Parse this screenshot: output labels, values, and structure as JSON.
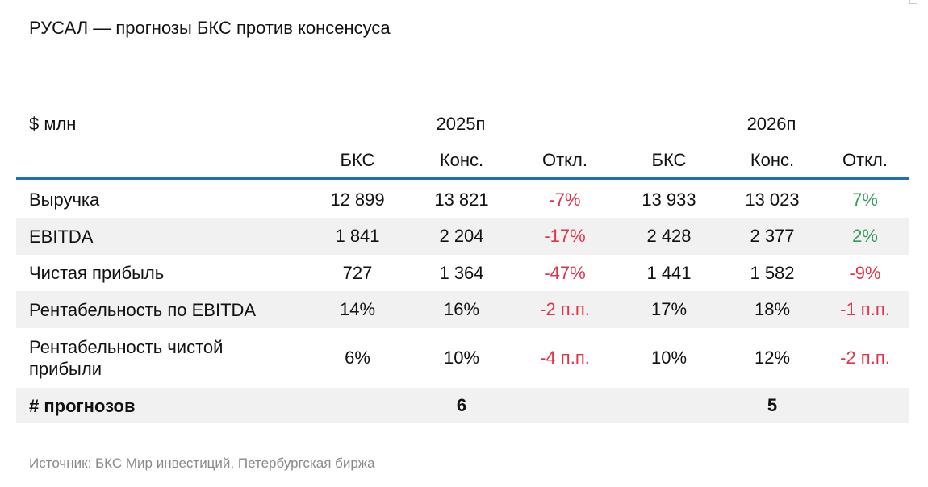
{
  "title": "РУСАЛ — прогнозы БКС против консенсуса",
  "unit_label": "$ млн",
  "years": [
    "2025п",
    "2026п"
  ],
  "subheaders": [
    "БКС",
    "Конс.",
    "Откл.",
    "БКС",
    "Конс.",
    "Откл."
  ],
  "rows": [
    {
      "label": "Выручка",
      "values": [
        "12 899",
        "13 821",
        "-7%",
        "13 933",
        "13 023",
        "7%"
      ]
    },
    {
      "label": "EBITDA",
      "values": [
        "1 841",
        "2 204",
        "-17%",
        "2 428",
        "2 377",
        "2%"
      ]
    },
    {
      "label": "Чистая прибыль",
      "values": [
        "727",
        "1 364",
        "-47%",
        "1 441",
        "1 582",
        "-9%"
      ]
    },
    {
      "label": "Рентабельность по EBITDA",
      "values": [
        "14%",
        "16%",
        "-2 п.п.",
        "17%",
        "18%",
        "-1 п.п."
      ]
    },
    {
      "label": "Рентабельность чистой прибыли",
      "values": [
        "6%",
        "10%",
        "-4 п.п.",
        "10%",
        "12%",
        "-2 п.п."
      ]
    }
  ],
  "forecasts": {
    "label": "# прогнозов",
    "count_2025": "6",
    "count_2026": "5"
  },
  "colors": {
    "accent_rule": "#1f6fbf",
    "negative": "#e0334a",
    "positive": "#3a9a5c",
    "shade": "#f1f1f1"
  },
  "source": "Источник: БКС Мир инвестиций, Петербургская биржа"
}
